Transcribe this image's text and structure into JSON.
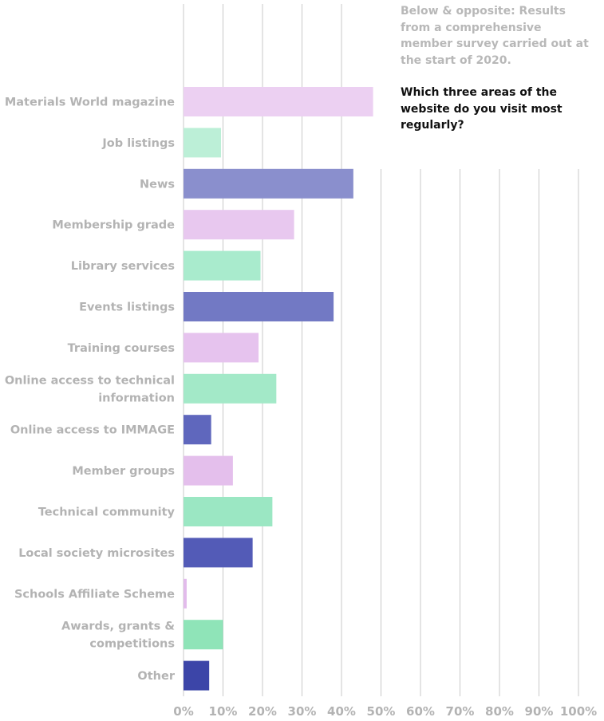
{
  "caption": "Below & opposite: Results from a comprehensive member survey carried out at the start of 2020.",
  "question": "Which three areas of the website do you visit most regularly?",
  "chart_data": {
    "type": "bar",
    "orientation": "horizontal",
    "title": "Which three areas of the website do you visit most regularly?",
    "xlim": [
      0,
      100
    ],
    "x_unit": "%",
    "ticks": [
      "0%",
      "10%",
      "20%",
      "30%",
      "40%",
      "50%",
      "60%",
      "70%",
      "80%",
      "90%",
      "100%"
    ],
    "grid": true,
    "categories": [
      {
        "label": [
          "Materials World magazine"
        ],
        "value": 48,
        "color": "#ecd0f2"
      },
      {
        "label": [
          "Job listings"
        ],
        "value": 9.5,
        "color": "#bcefd7"
      },
      {
        "label": [
          "News"
        ],
        "value": 43,
        "color": "#8a8fcd"
      },
      {
        "label": [
          "Membership grade"
        ],
        "value": 28,
        "color": "#e8c8ef"
      },
      {
        "label": [
          "Library services"
        ],
        "value": 19.5,
        "color": "#a9ebcd"
      },
      {
        "label": [
          "Events listings"
        ],
        "value": 38,
        "color": "#7279c4"
      },
      {
        "label": [
          "Training courses"
        ],
        "value": 19,
        "color": "#e6c3ee"
      },
      {
        "label": [
          "Online access to technical",
          "information"
        ],
        "value": 23.5,
        "color": "#a3e9c8"
      },
      {
        "label": [
          "Online access to IMMAGE"
        ],
        "value": 7,
        "color": "#5f67bd"
      },
      {
        "label": [
          "Member groups"
        ],
        "value": 12.5,
        "color": "#e4bfec"
      },
      {
        "label": [
          "Technical community"
        ],
        "value": 22.5,
        "color": "#9be7c3"
      },
      {
        "label": [
          "Local society microsites"
        ],
        "value": 17.5,
        "color": "#535bb7"
      },
      {
        "label": [
          "Schools Affiliate Scheme"
        ],
        "value": 0.8,
        "color": "#e2bbeb"
      },
      {
        "label": [
          "Awards, grants &",
          "competitions"
        ],
        "value": 10,
        "color": "#8fe4b8"
      },
      {
        "label": [
          "Other"
        ],
        "value": 6.5,
        "color": "#3c45a8"
      }
    ]
  }
}
